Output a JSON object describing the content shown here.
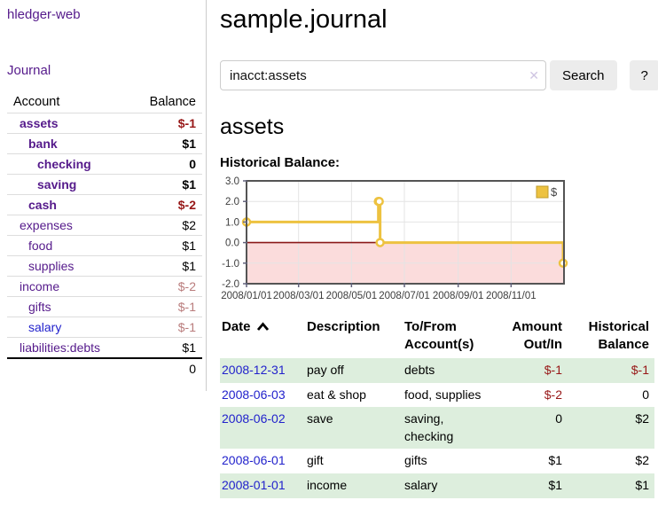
{
  "app": {
    "title": "hledger-web",
    "nav_journal": "Journal"
  },
  "sidebar": {
    "accounts_header": {
      "account": "Account",
      "balance": "Balance"
    },
    "accounts": [
      {
        "name": "assets",
        "depth": 0,
        "bold": true,
        "balance": "$-1",
        "balance_class": "neg-strong"
      },
      {
        "name": "bank",
        "depth": 1,
        "bold": true,
        "balance": "$1",
        "balance_class": ""
      },
      {
        "name": "checking",
        "depth": 2,
        "bold": true,
        "balance": "0",
        "balance_class": ""
      },
      {
        "name": "saving",
        "depth": 2,
        "bold": true,
        "balance": "$1",
        "balance_class": ""
      },
      {
        "name": "cash",
        "depth": 1,
        "bold": true,
        "balance": "$-2",
        "balance_class": "neg-strong"
      },
      {
        "name": "expenses",
        "depth": 0,
        "bold": false,
        "balance": "$2",
        "balance_class": ""
      },
      {
        "name": "food",
        "depth": 1,
        "bold": false,
        "balance": "$1",
        "balance_class": ""
      },
      {
        "name": "supplies",
        "depth": 1,
        "bold": false,
        "balance": "$1",
        "balance_class": ""
      },
      {
        "name": "income",
        "depth": 0,
        "bold": false,
        "balance": "$-2",
        "balance_class": "neg-muted"
      },
      {
        "name": "gifts",
        "depth": 1,
        "bold": false,
        "balance": "$-1",
        "balance_class": "neg-muted"
      },
      {
        "name": "salary",
        "depth": 1,
        "bold": false,
        "balance": "$-1",
        "balance_class": "neg-muted",
        "blue": true
      },
      {
        "name": "liabilities:debts",
        "depth": 0,
        "bold": false,
        "balance": "$1",
        "balance_class": ""
      }
    ],
    "total": "0"
  },
  "main": {
    "title": "sample.journal",
    "search": {
      "value": "inacct:assets",
      "clear_icon": "✕",
      "button": "Search",
      "help_button": "?"
    },
    "account_heading": "assets",
    "chart_label": "Historical Balance:"
  },
  "chart_data": {
    "type": "line",
    "title": "Historical Balance",
    "step": true,
    "series": [
      {
        "name": "$",
        "color": "#edc240",
        "points": [
          [
            "2008-01-01",
            1
          ],
          [
            "2008-06-01",
            2
          ],
          [
            "2008-06-02",
            2
          ],
          [
            "2008-06-03",
            0
          ],
          [
            "2008-12-31",
            -1
          ]
        ]
      }
    ],
    "x_range": [
      "2008-01-01",
      "2009-01-01"
    ],
    "x_ticks": [
      "2008/01/01",
      "2008/03/01",
      "2008/05/01",
      "2008/07/01",
      "2008/09/01",
      "2008/11/01"
    ],
    "y_ticks": [
      3,
      2,
      1,
      0,
      -1,
      -2
    ],
    "y_tick_labels": [
      "3.0",
      "2.0",
      "1.0",
      "0.0",
      "-1.0",
      "-2.0"
    ],
    "ylim": [
      -2,
      3
    ],
    "legend": {
      "label": "$",
      "position": "top-right"
    },
    "grid": true
  },
  "register": {
    "columns": {
      "date": "Date",
      "description": "Description",
      "accounts": "To/From Account(s)",
      "amount": "Amount Out/In",
      "balance": "Historical Balance"
    },
    "rows": [
      {
        "date": "2008-12-31",
        "description": "pay off",
        "accounts": "debts",
        "amount": "$-1",
        "amount_negative": true,
        "balance": "$-1",
        "balance_negative": true
      },
      {
        "date": "2008-06-03",
        "description": "eat & shop",
        "accounts": "food, supplies",
        "amount": "$-2",
        "amount_negative": true,
        "balance": "0",
        "balance_negative": false
      },
      {
        "date": "2008-06-02",
        "description": "save",
        "accounts": "saving, checking",
        "amount": "0",
        "amount_negative": false,
        "balance": "$2",
        "balance_negative": false
      },
      {
        "date": "2008-06-01",
        "description": "gift",
        "accounts": "gifts",
        "amount": "$1",
        "amount_negative": false,
        "balance": "$2",
        "balance_negative": false
      },
      {
        "date": "2008-01-01",
        "description": "income",
        "accounts": "salary",
        "amount": "$1",
        "amount_negative": false,
        "balance": "$1",
        "balance_negative": false
      }
    ]
  },
  "colors": {
    "purple": "#551a8b",
    "link_blue": "#2222cc",
    "negative": "#971717",
    "negative_muted": "#b97c7c",
    "row_green": "#ddeedd",
    "negative_region": "#fbdcdc",
    "zero_line": "#8b1a1a",
    "chart_border": "#545454",
    "grid": "#e4e4e4"
  }
}
